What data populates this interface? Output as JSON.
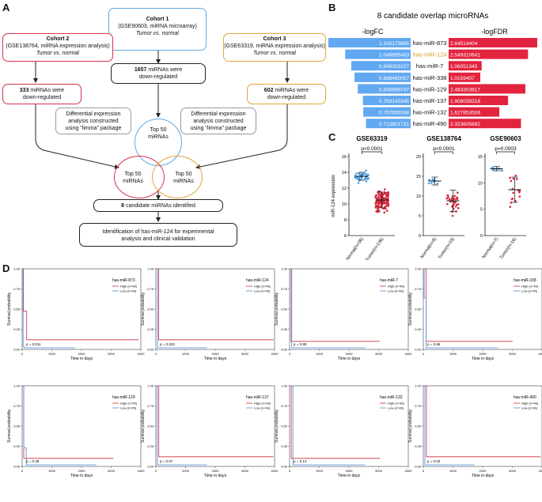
{
  "panel_labels": {
    "a": "A",
    "b": "B",
    "c": "C",
    "d": "D"
  },
  "panel_a": {
    "cohort1": {
      "title": "Cohort 1",
      "line1": "(GSE90603, miRNA microarray)",
      "line2": "Tumor  vs. normal"
    },
    "cohort2": {
      "title": "Cohort 2",
      "line1": "(GSE138764, miRNA expression analysis)",
      "line2": "Tumor  vs. normal"
    },
    "cohort3": {
      "title": "Cohort 3",
      "line1": "(GSE63319, miRNA expression analysis)",
      "line2": "Tumor  vs. normal"
    },
    "down1": {
      "count": "1657",
      "text": " miRNAs were",
      "text2": "down-regulated"
    },
    "down2": {
      "count": "333",
      "text": " miRNAs were",
      "text2": "down-regulated"
    },
    "down3": {
      "count": "602",
      "text": " miRNAs were",
      "text2": "down-regulated"
    },
    "diff_left": {
      "l1": "Differential expression",
      "l2": "analysis constructed",
      "l3": "using \"limma\" package"
    },
    "diff_right": {
      "l1": "Differential expression",
      "l2": "analysis constructed",
      "l3": "using \"limma\" package"
    },
    "top_center": {
      "l1": "Top 50",
      "l2": "miRNAs"
    },
    "top_left": {
      "l1": "Top 50",
      "l2": "miRNAs"
    },
    "top_right": {
      "l1": "Top 50",
      "l2": "miRNAs"
    },
    "candidates": {
      "count": "8",
      "text": " candidate miRNAs identified"
    },
    "identification": {
      "l1": "Identification of has-miR-124 for experimental",
      "l2": "analysis and clinical validation"
    }
  },
  "chart_data": [
    {
      "type": "bar",
      "panel": "B",
      "title": "8 candidate overlap microRNAs",
      "left_label": "-logFC",
      "right_label": "-logFDR",
      "categories": [
        "has-miR-873",
        "has-miR-124",
        "has-miR-7",
        "has-miR-338",
        "has-miR-129",
        "has-miR-137",
        "has-miR-132",
        "has-miR-490"
      ],
      "highlight": "has-miR-124",
      "series": [
        {
          "name": "-logFC",
          "color": "#62a8f0",
          "values": [
            1.316173685,
            1.046895483,
            0.949203107,
            0.898460057,
            0.845669747,
            0.763143345,
            0.757655598,
            0.713801731
          ],
          "labels": [
            "1.316173685",
            "1.046895483",
            "0.949203107",
            "0.898460057",
            "0.845669747",
            "0.763143345",
            "0.757655598",
            "0.713801731"
          ]
        },
        {
          "name": "-logFDR",
          "color": "#e2243e",
          "values": [
            2.84514404,
            2.549310641,
            1.06051345,
            1.0159407,
            2.463303817,
            1.908039218,
            1.627853508,
            2.323605682
          ],
          "labels": [
            "2.84514404",
            "2.549310641",
            "1.06051345",
            "1.0159407",
            "2.463303817",
            "1.908039218",
            "1.627853508",
            "2.323605682"
          ]
        }
      ]
    },
    {
      "type": "scatter",
      "panel": "C",
      "title": "GSE63319",
      "ylabel": "miR-124 expression",
      "ylim": [
        6,
        16
      ],
      "yticks": [
        "6",
        "8",
        "10",
        "12",
        "14",
        "16"
      ],
      "categories": [
        "Normal(n=36)",
        "Tumor(n=136)"
      ],
      "means": [
        13.5,
        10.5
      ],
      "sd": [
        0.5,
        1.0
      ],
      "pvalue": "p<0.0001"
    },
    {
      "type": "scatter",
      "panel": "C",
      "title": "GSE138764",
      "ylim": [
        0,
        20
      ],
      "yticks": [
        "0",
        "5",
        "10",
        "15",
        "20"
      ],
      "categories": [
        "Normal(n=9)",
        "Tumor(n=33)"
      ],
      "means": [
        13.8,
        8.8
      ],
      "sd": [
        1.0,
        2.7
      ],
      "pvalue": "p<0.0001"
    },
    {
      "type": "scatter",
      "panel": "C",
      "title": "GSE90603",
      "ylim": [
        0,
        15
      ],
      "yticks": [
        "0",
        "5",
        "10",
        "15"
      ],
      "categories": [
        "Normal(n=7)",
        "Tumor(n=16)"
      ],
      "means": [
        12.7,
        8.7
      ],
      "sd": [
        0.4,
        2.4
      ],
      "pvalue": "p=0.0003"
    },
    {
      "type": "line",
      "panel": "D",
      "subtype": "kaplan-meier",
      "xlabel": "Time in days",
      "ylabel": "Survival probability",
      "xticks": [
        "0",
        "1000",
        "2000",
        "3000",
        "4000"
      ],
      "yticks": [
        "0.00",
        "0.25",
        "0.50",
        "0.75",
        "1.00"
      ],
      "legend_high": "High",
      "legend_low": "Low",
      "high_color": "#d42a3c",
      "low_color": "#4a8fe0",
      "plots": [
        {
          "name": "has-miR-873",
          "high_n": "High (n=46)",
          "low_n": "Low (n=46)",
          "p": "p = 0.011"
        },
        {
          "name": "has-miR-124",
          "high_n": "High (n=46)",
          "low_n": "Low (n=46)",
          "p": "p = 0.023"
        },
        {
          "name": "has-miR-7",
          "high_n": "High (n=46)",
          "low_n": "Low (n=46)",
          "p": "p = 0.89"
        },
        {
          "name": "has-miR-338",
          "high_n": "High (n=45)",
          "low_n": "Low (n=45)",
          "p": "p = 0.96"
        },
        {
          "name": "has-miR-129",
          "high_n": "High (n=45)",
          "low_n": "Low (n=45)",
          "p": "p = 0.49"
        },
        {
          "name": "has-miR-137",
          "high_n": "High (n=46)",
          "low_n": "Low (n=44)",
          "p": "p = 0.07"
        },
        {
          "name": "has-miR-132",
          "high_n": "High (n=46)",
          "low_n": "Low (n=46)",
          "p": "p = 0.14"
        },
        {
          "name": "has-miR-490",
          "high_n": "High (n=46)",
          "low_n": "Low (n=46)",
          "p": "p = 0.03"
        }
      ]
    }
  ]
}
